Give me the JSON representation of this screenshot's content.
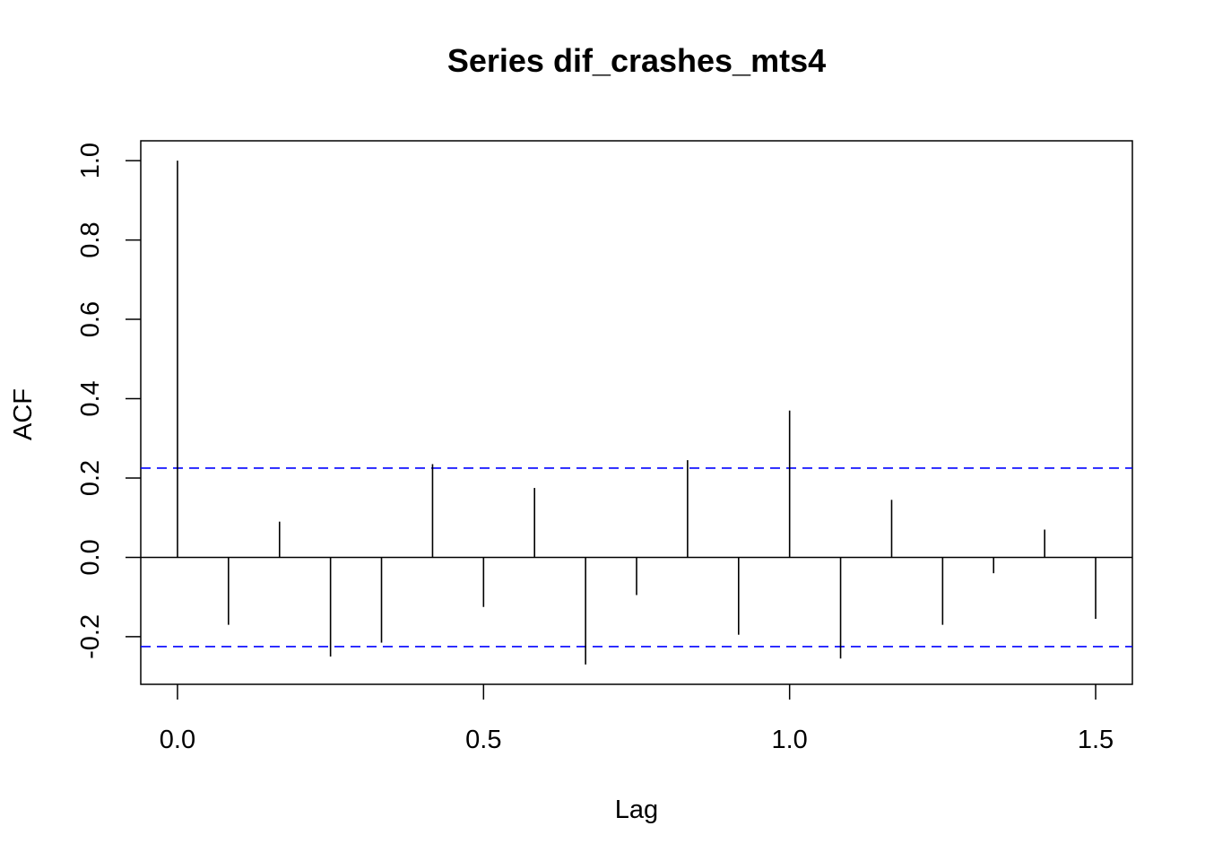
{
  "chart_data": {
    "type": "bar",
    "title": "Series  dif_crashes_mts4",
    "xlabel": "Lag",
    "ylabel": "ACF",
    "xlim": [
      -0.06,
      1.56
    ],
    "ylim": [
      -0.32,
      1.05
    ],
    "x_ticks": [
      0.0,
      0.5,
      1.0,
      1.5
    ],
    "x_tick_labels": [
      "0.0",
      "0.5",
      "1.0",
      "1.5"
    ],
    "y_ticks": [
      -0.2,
      0.0,
      0.2,
      0.4,
      0.6,
      0.8,
      1.0
    ],
    "y_tick_labels": [
      "-0.2",
      "0.0",
      "0.2",
      "0.4",
      "0.6",
      "0.8",
      "1.0"
    ],
    "series": [
      {
        "x": [
          0.0,
          0.0833,
          0.1667,
          0.25,
          0.3333,
          0.4167,
          0.5,
          0.5833,
          0.6667,
          0.75,
          0.8333,
          0.9167,
          1.0,
          1.0833,
          1.1667,
          1.25,
          1.3333,
          1.4167,
          1.5
        ],
        "values": [
          1.0,
          -0.17,
          0.09,
          -0.25,
          -0.215,
          0.235,
          -0.125,
          0.175,
          -0.27,
          -0.095,
          0.245,
          -0.195,
          0.37,
          -0.255,
          0.145,
          -0.17,
          -0.04,
          0.07,
          -0.155
        ]
      }
    ],
    "confidence_band": 0.225,
    "colors": {
      "spike": "#000000",
      "band": "#0000ff",
      "axis": "#000000"
    },
    "grid": false
  }
}
